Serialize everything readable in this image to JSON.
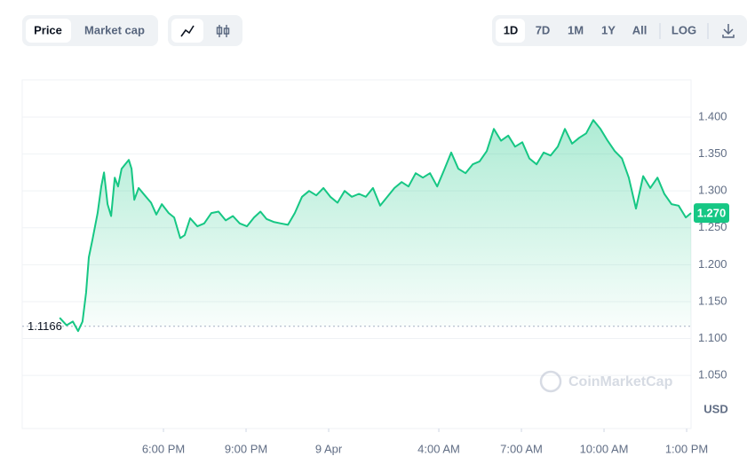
{
  "toolbar": {
    "metric_tabs": [
      "Price",
      "Market cap"
    ],
    "ranges": [
      "1D",
      "7D",
      "1M",
      "1Y",
      "All"
    ],
    "log": "LOG"
  },
  "chart_data": {
    "type": "line",
    "color": "#16c784",
    "x": [
      14.23,
      14.48,
      14.71,
      14.9,
      15.06,
      15.19,
      15.29,
      15.42,
      15.61,
      15.74,
      15.84,
      15.97,
      16.1,
      16.23,
      16.35,
      16.48,
      16.61,
      16.74,
      16.84,
      16.94,
      17.1,
      17.32,
      17.55,
      17.74,
      17.94,
      18.19,
      18.39,
      18.61,
      18.77,
      18.97,
      19.23,
      19.48,
      19.74,
      20.0,
      20.26,
      20.52,
      20.77,
      21.03,
      21.29,
      21.52,
      21.74,
      22.0,
      22.26,
      22.52,
      22.77,
      23.03,
      23.29,
      23.55,
      23.81,
      24.06,
      24.32,
      24.58,
      24.84,
      25.1,
      25.35,
      25.61,
      25.87,
      26.13,
      26.39,
      26.65,
      26.9,
      27.16,
      27.42,
      27.68,
      27.94,
      28.19,
      28.45,
      28.71,
      28.97,
      29.23,
      29.48,
      29.74,
      30.0,
      30.26,
      30.52,
      30.77,
      31.03,
      31.29,
      31.55,
      31.81,
      32.06,
      32.32,
      32.58,
      32.84,
      33.1,
      33.35,
      33.61,
      33.87,
      34.13,
      34.39,
      34.65,
      34.9,
      35.16,
      35.42,
      35.68,
      35.94,
      36.19,
      36.45,
      36.71,
      36.97,
      37.16
    ],
    "values": [
      1.128,
      1.118,
      1.123,
      1.11,
      1.123,
      1.162,
      1.21,
      1.234,
      1.27,
      1.306,
      1.325,
      1.282,
      1.266,
      1.318,
      1.306,
      1.33,
      1.336,
      1.342,
      1.33,
      1.288,
      1.304,
      1.294,
      1.284,
      1.268,
      1.282,
      1.27,
      1.264,
      1.236,
      1.24,
      1.263,
      1.252,
      1.256,
      1.27,
      1.272,
      1.26,
      1.266,
      1.256,
      1.252,
      1.264,
      1.272,
      1.262,
      1.258,
      1.256,
      1.254,
      1.27,
      1.292,
      1.3,
      1.294,
      1.304,
      1.292,
      1.284,
      1.3,
      1.292,
      1.296,
      1.292,
      1.304,
      1.28,
      1.292,
      1.304,
      1.312,
      1.306,
      1.324,
      1.318,
      1.324,
      1.306,
      1.328,
      1.352,
      1.33,
      1.324,
      1.336,
      1.34,
      1.354,
      1.384,
      1.368,
      1.375,
      1.36,
      1.366,
      1.344,
      1.336,
      1.352,
      1.348,
      1.36,
      1.384,
      1.364,
      1.372,
      1.378,
      1.396,
      1.384,
      1.368,
      1.354,
      1.344,
      1.318,
      1.276,
      1.32,
      1.304,
      1.318,
      1.296,
      1.282,
      1.28,
      1.264,
      1.27
    ],
    "xlim": [
      12.87,
      37.16
    ],
    "xticks": [
      {
        "value": 18,
        "label": "6:00 PM"
      },
      {
        "value": 21,
        "label": "9:00 PM"
      },
      {
        "value": 24,
        "label": "9 Apr"
      },
      {
        "value": 28,
        "label": "4:00 AM"
      },
      {
        "value": 31,
        "label": "7:00 AM"
      },
      {
        "value": 34,
        "label": "10:00 AM"
      },
      {
        "value": 37,
        "label": "1:00 PM"
      }
    ],
    "ylim": [
      0.978,
      1.4505
    ],
    "yticks": [
      {
        "value": 1.05,
        "label": "1.050"
      },
      {
        "value": 1.1,
        "label": "1.100"
      },
      {
        "value": 1.15,
        "label": "1.150"
      },
      {
        "value": 1.2,
        "label": "1.200"
      },
      {
        "value": 1.25,
        "label": "1.250"
      },
      {
        "value": 1.3,
        "label": "1.300"
      },
      {
        "value": 1.35,
        "label": "1.350"
      },
      {
        "value": 1.4,
        "label": "1.400"
      }
    ],
    "grid": true,
    "baseline": 1.1166,
    "current_price": {
      "value": 1.27,
      "label": "1.270"
    },
    "y_unit": "USD",
    "watermark": "CoinMarketCap"
  }
}
